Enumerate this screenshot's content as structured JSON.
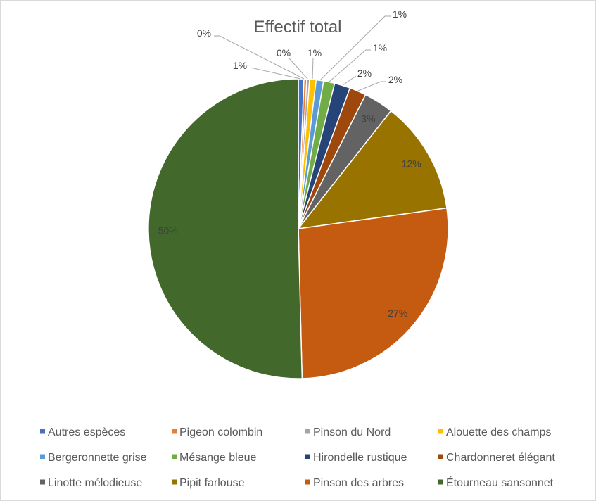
{
  "chart_data": {
    "type": "pie",
    "title": "Effectif total",
    "categories": [
      "Autres espèces",
      "Pigeon colombin",
      "Pinson du Nord",
      "Alouette des champs",
      "Bergeronnette grise",
      "Mésange bleue",
      "Hirondelle rustique",
      "Chardonneret élégant",
      "Linotte mélodieuse",
      "Pipit farlouse",
      "Pinson des arbres",
      "Étourneau sansonnet"
    ],
    "values": [
      0.6,
      0.3,
      0.3,
      0.7,
      0.8,
      1.2,
      1.7,
      1.8,
      3.2,
      12.2,
      26.8,
      50.4
    ],
    "data_labels": [
      "1%",
      "0%",
      "0%",
      "1%",
      "1%",
      "1%",
      "2%",
      "2%",
      "3%",
      "12%",
      "27%",
      "50%"
    ],
    "colors": [
      "#4472C4",
      "#ED7D31",
      "#A5A5A5",
      "#FFC000",
      "#5B9BD5",
      "#70AD47",
      "#264478",
      "#9E480E",
      "#636363",
      "#997300",
      "#C55A11",
      "#43682B"
    ],
    "legend_position": "bottom"
  }
}
